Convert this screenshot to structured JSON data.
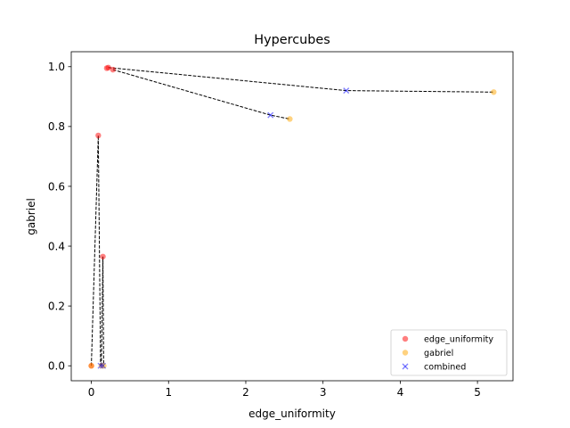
{
  "chart_data": {
    "type": "scatter",
    "title": "Hypercubes",
    "xlabel": "edge_uniformity",
    "ylabel": "gabriel",
    "xlim": [
      -0.26,
      5.46
    ],
    "ylim": [
      -0.05,
      1.05
    ],
    "xticks": [
      0,
      1,
      2,
      3,
      4,
      5
    ],
    "yticks": [
      0.0,
      0.2,
      0.4,
      0.6,
      0.8,
      1.0
    ],
    "xtick_labels": [
      "0",
      "1",
      "2",
      "3",
      "4",
      "5"
    ],
    "ytick_labels": [
      "0.0",
      "0.2",
      "0.4",
      "0.6",
      "0.8",
      "1.0"
    ],
    "grid": false,
    "legend_position": "lower right",
    "series": [
      {
        "name": "edge_uniformity",
        "marker": "circle",
        "color": "#ff0000",
        "points": [
          [
            0.0,
            0.0
          ],
          [
            0.09,
            0.77
          ],
          [
            0.15,
            0.365
          ],
          [
            0.2,
            0.995
          ],
          [
            0.22,
            0.997
          ],
          [
            0.28,
            0.99
          ]
        ]
      },
      {
        "name": "gabriel",
        "marker": "circle",
        "color": "#ffa500",
        "points": [
          [
            0.0,
            0.0
          ],
          [
            0.13,
            0.0
          ],
          [
            0.16,
            0.0
          ],
          [
            2.57,
            0.825
          ],
          [
            5.21,
            0.915
          ]
        ]
      },
      {
        "name": "combined",
        "marker": "x",
        "color": "#0000ff",
        "points": [
          [
            0.12,
            0.0
          ],
          [
            0.15,
            0.0
          ],
          [
            2.32,
            0.838
          ],
          [
            3.3,
            0.92
          ]
        ]
      }
    ],
    "connections": [
      [
        [
          0.0,
          0.0
        ],
        [
          0.09,
          0.77
        ],
        [
          0.12,
          0.0
        ]
      ],
      [
        [
          0.13,
          0.0
        ],
        [
          0.15,
          0.365
        ],
        [
          0.16,
          0.0
        ]
      ],
      [
        [
          0.28,
          0.99
        ],
        [
          2.32,
          0.838
        ],
        [
          2.57,
          0.825
        ]
      ],
      [
        [
          0.22,
          0.997
        ],
        [
          3.3,
          0.92
        ],
        [
          5.21,
          0.915
        ]
      ]
    ]
  }
}
